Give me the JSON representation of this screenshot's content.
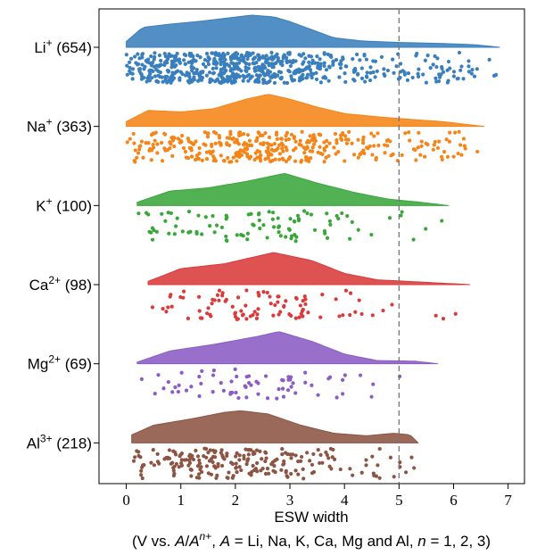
{
  "chart_data": {
    "type": "raincloud",
    "title": "",
    "xlabel": "ESW width",
    "xlabel_note": "(V vs. A/An+, A = Li, Na, K, Ca, Mg and Al, n = 1, 2, 3)",
    "xlim": [
      -0.5,
      7.3
    ],
    "xticks": [
      "0",
      "1",
      "2",
      "3",
      "4",
      "5",
      "6",
      "7"
    ],
    "reference_line_x": 5,
    "categories": [
      {
        "ion": "Li",
        "charge": "+",
        "count": "(654)",
        "color": "#3a7fbd",
        "n_points": 654,
        "min": 0.0,
        "max": 6.85,
        "mode": 2.4,
        "density": [
          [
            0.0,
            0.18
          ],
          [
            0.3,
            0.62
          ],
          [
            0.8,
            0.72
          ],
          [
            1.3,
            0.8
          ],
          [
            1.8,
            0.9
          ],
          [
            2.3,
            1.0
          ],
          [
            2.7,
            0.95
          ],
          [
            3.0,
            0.8
          ],
          [
            3.4,
            0.55
          ],
          [
            3.8,
            0.3
          ],
          [
            4.3,
            0.2
          ],
          [
            5.0,
            0.15
          ],
          [
            5.8,
            0.12
          ],
          [
            6.4,
            0.08
          ],
          [
            6.85,
            0.0
          ]
        ]
      },
      {
        "ion": "Na",
        "charge": "+",
        "count": "(363)",
        "color": "#f58518",
        "n_points": 363,
        "min": 0.0,
        "max": 6.55,
        "mode": 2.6,
        "density": [
          [
            0.0,
            0.15
          ],
          [
            0.4,
            0.5
          ],
          [
            1.0,
            0.45
          ],
          [
            1.6,
            0.55
          ],
          [
            2.2,
            0.85
          ],
          [
            2.6,
            1.0
          ],
          [
            3.0,
            0.85
          ],
          [
            3.5,
            0.6
          ],
          [
            4.0,
            0.4
          ],
          [
            4.6,
            0.3
          ],
          [
            5.2,
            0.22
          ],
          [
            5.8,
            0.15
          ],
          [
            6.55,
            0.0
          ]
        ]
      },
      {
        "ion": "K",
        "charge": "+",
        "count": "(100)",
        "color": "#3aa63a",
        "n_points": 100,
        "min": 0.2,
        "max": 5.9,
        "mode": 2.9,
        "density": [
          [
            0.2,
            0.1
          ],
          [
            0.8,
            0.45
          ],
          [
            1.5,
            0.55
          ],
          [
            2.2,
            0.75
          ],
          [
            2.9,
            1.0
          ],
          [
            3.5,
            0.7
          ],
          [
            4.2,
            0.4
          ],
          [
            4.8,
            0.2
          ],
          [
            5.4,
            0.1
          ],
          [
            5.9,
            0.0
          ]
        ]
      },
      {
        "ion": "Ca",
        "charge": "2+",
        "count": "(98)",
        "color": "#d93a3a",
        "n_points": 98,
        "min": 0.4,
        "max": 6.3,
        "mode": 2.7,
        "density": [
          [
            0.4,
            0.1
          ],
          [
            1.0,
            0.5
          ],
          [
            1.8,
            0.65
          ],
          [
            2.7,
            1.0
          ],
          [
            3.4,
            0.75
          ],
          [
            4.0,
            0.35
          ],
          [
            4.6,
            0.15
          ],
          [
            5.4,
            0.08
          ],
          [
            6.3,
            0.0
          ]
        ]
      },
      {
        "ion": "Mg",
        "charge": "2+",
        "count": "(69)",
        "color": "#8a5cc4",
        "n_points": 69,
        "min": 0.2,
        "max": 5.7,
        "mode": 2.8,
        "density": [
          [
            0.2,
            0.05
          ],
          [
            0.8,
            0.4
          ],
          [
            1.6,
            0.6
          ],
          [
            2.4,
            0.85
          ],
          [
            2.8,
            1.0
          ],
          [
            3.4,
            0.7
          ],
          [
            4.0,
            0.3
          ],
          [
            4.6,
            0.1
          ],
          [
            5.3,
            0.08
          ],
          [
            5.7,
            0.0
          ]
        ]
      },
      {
        "ion": "Al",
        "charge": "3+",
        "count": "(218)",
        "color": "#8c5443",
        "n_points": 218,
        "min": 0.1,
        "max": 5.35,
        "mode": 2.1,
        "density": [
          [
            0.1,
            0.25
          ],
          [
            0.5,
            0.55
          ],
          [
            1.2,
            0.75
          ],
          [
            1.8,
            0.95
          ],
          [
            2.1,
            1.0
          ],
          [
            2.6,
            0.9
          ],
          [
            3.2,
            0.55
          ],
          [
            3.8,
            0.3
          ],
          [
            4.4,
            0.22
          ],
          [
            4.9,
            0.3
          ],
          [
            5.2,
            0.25
          ],
          [
            5.35,
            0.0
          ]
        ]
      }
    ]
  }
}
